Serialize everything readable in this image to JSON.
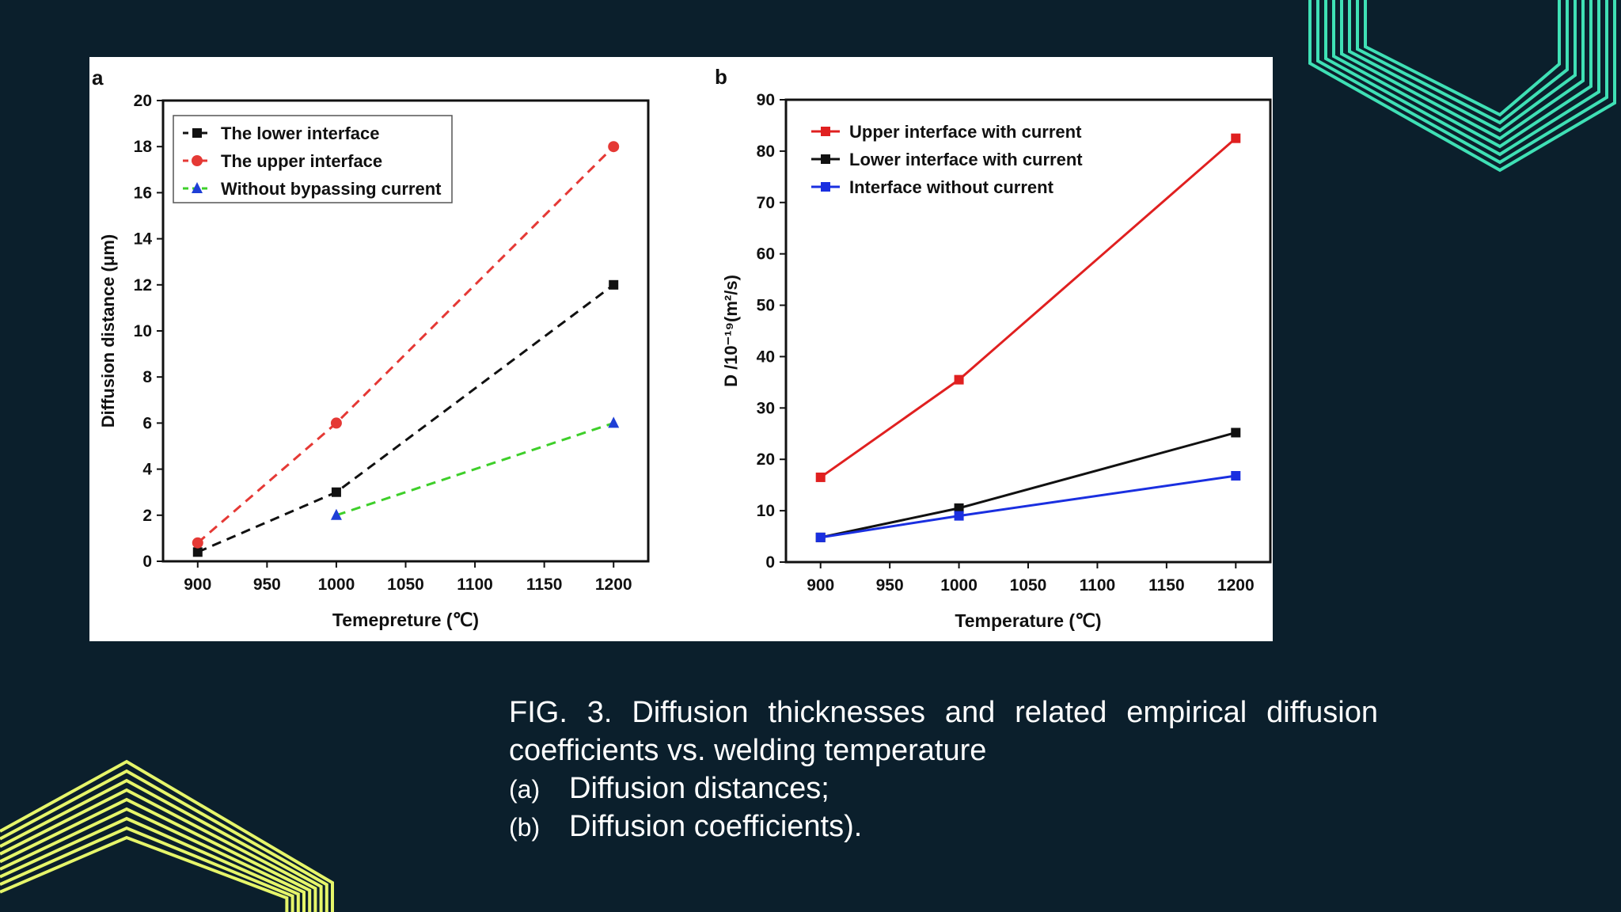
{
  "colors": {
    "background": "#0b1f2c",
    "deco_top": "#3fe0b5",
    "deco_bottom": "#e6f56a",
    "panel": "#ffffff"
  },
  "chart_data": [
    {
      "panel_label": "a",
      "type": "line",
      "xlabel": "Temepreture (℃)",
      "ylabel": "Diffusion distance (μm)",
      "xlim": [
        875,
        1225
      ],
      "ylim": [
        0,
        20
      ],
      "x_ticks": [
        900,
        950,
        1000,
        1050,
        1100,
        1150,
        1200
      ],
      "y_ticks": [
        0,
        2,
        4,
        6,
        8,
        10,
        12,
        14,
        16,
        18,
        20
      ],
      "grid": false,
      "legend_position": "top-left",
      "series": [
        {
          "name": "The lower interface",
          "color": "#111111",
          "marker": "square",
          "dash": true,
          "x": [
            900,
            1000,
            1200
          ],
          "y": [
            0.4,
            3.0,
            12.0
          ]
        },
        {
          "name": "The upper interface",
          "color": "#e53935",
          "marker": "circle",
          "dash": true,
          "x": [
            900,
            1000,
            1200
          ],
          "y": [
            0.8,
            6.0,
            18.0
          ]
        },
        {
          "name": "Without bypassing current",
          "color": "#1e3fd6",
          "line_color": "#3ecf2a",
          "marker": "triangle",
          "dash": true,
          "x": [
            1000,
            1200
          ],
          "y": [
            2.0,
            6.0
          ]
        }
      ]
    },
    {
      "panel_label": "b",
      "type": "line",
      "xlabel": "Temperature (℃)",
      "ylabel": "D /10⁻¹⁹(m²/s)",
      "xlim": [
        875,
        1225
      ],
      "ylim": [
        0,
        90
      ],
      "x_ticks": [
        900,
        950,
        1000,
        1050,
        1100,
        1150,
        1200
      ],
      "y_ticks": [
        0,
        10,
        20,
        30,
        40,
        50,
        60,
        70,
        80,
        90
      ],
      "grid": false,
      "legend_position": "top-left",
      "series": [
        {
          "name": "Upper interface with current",
          "color": "#e02020",
          "marker": "square",
          "dash": false,
          "x": [
            900,
            1000,
            1200
          ],
          "y": [
            16.5,
            35.5,
            82.5
          ]
        },
        {
          "name": "Lower interface with current",
          "color": "#111111",
          "marker": "square",
          "dash": false,
          "x": [
            900,
            1000,
            1200
          ],
          "y": [
            4.8,
            10.5,
            25.2
          ]
        },
        {
          "name": "Interface without current",
          "color": "#1a2fe0",
          "marker": "square",
          "dash": false,
          "x": [
            900,
            1000,
            1200
          ],
          "y": [
            4.8,
            9.0,
            16.8
          ]
        }
      ]
    }
  ],
  "caption": {
    "title": "FIG. 3. Diffusion thicknesses and related empirical diffusion coefficients vs. welding temperature",
    "items": [
      {
        "label": "(a)",
        "text": "Diffusion distances;"
      },
      {
        "label": "(b)",
        "text": "Diffusion coefficients)."
      }
    ]
  }
}
